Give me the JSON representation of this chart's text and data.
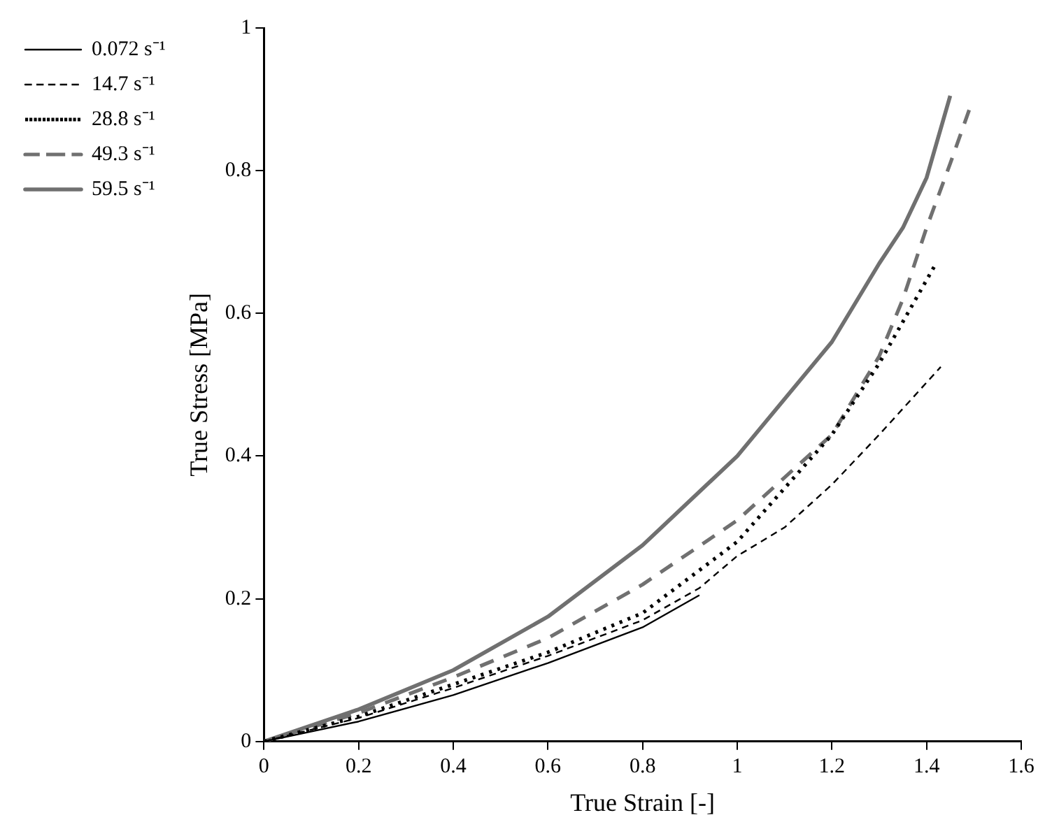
{
  "chart_data": {
    "type": "line",
    "xlabel": "True Strain [-]",
    "ylabel": "True Stress [MPa]",
    "xlim": [
      0,
      1.6
    ],
    "xticks": [
      0,
      0.2,
      0.4,
      0.6,
      0.8,
      1,
      1.2,
      1.4,
      1.6
    ],
    "ylim": [
      0,
      1
    ],
    "yticks": [
      0,
      0.2,
      0.4,
      0.6,
      0.8,
      1
    ],
    "grid": false,
    "legend": "top left",
    "marker": "none",
    "series": [
      {
        "name": "0.072 s⁻¹",
        "color": "#000000",
        "line_style": "solid",
        "x": [
          0,
          0.2,
          0.4,
          0.6,
          0.8,
          0.92
        ],
        "values": [
          0,
          0.028,
          0.065,
          0.11,
          0.16,
          0.205
        ]
      },
      {
        "name": "14.7 s⁻¹",
        "color": "#000000",
        "line_style": "dashed",
        "x": [
          0,
          0.2,
          0.4,
          0.6,
          0.8,
          0.92,
          1.0,
          1.1,
          1.2,
          1.3,
          1.43
        ],
        "values": [
          0,
          0.033,
          0.075,
          0.12,
          0.17,
          0.215,
          0.26,
          0.3,
          0.36,
          0.43,
          0.525
        ]
      },
      {
        "name": "28.8 s⁻¹",
        "color": "#000000",
        "line_style": "dotted",
        "x": [
          0,
          0.2,
          0.4,
          0.6,
          0.8,
          1.0,
          1.2,
          1.3,
          1.42
        ],
        "values": [
          0,
          0.035,
          0.08,
          0.125,
          0.18,
          0.28,
          0.43,
          0.53,
          0.67
        ]
      },
      {
        "name": "49.3 s⁻¹",
        "color": "#707070",
        "line_style": "dashed",
        "x": [
          0,
          0.2,
          0.4,
          0.6,
          0.8,
          1.0,
          1.2,
          1.3,
          1.35,
          1.4,
          1.45,
          1.49
        ],
        "values": [
          0,
          0.04,
          0.09,
          0.145,
          0.22,
          0.31,
          0.43,
          0.54,
          0.62,
          0.72,
          0.81,
          0.885
        ]
      },
      {
        "name": "59.5 s⁻¹",
        "color": "#707070",
        "line_style": "solid",
        "x": [
          0,
          0.2,
          0.4,
          0.6,
          0.8,
          1.0,
          1.2,
          1.3,
          1.35,
          1.4,
          1.45
        ],
        "values": [
          0,
          0.045,
          0.1,
          0.175,
          0.275,
          0.4,
          0.56,
          0.67,
          0.72,
          0.79,
          0.905
        ]
      }
    ]
  }
}
